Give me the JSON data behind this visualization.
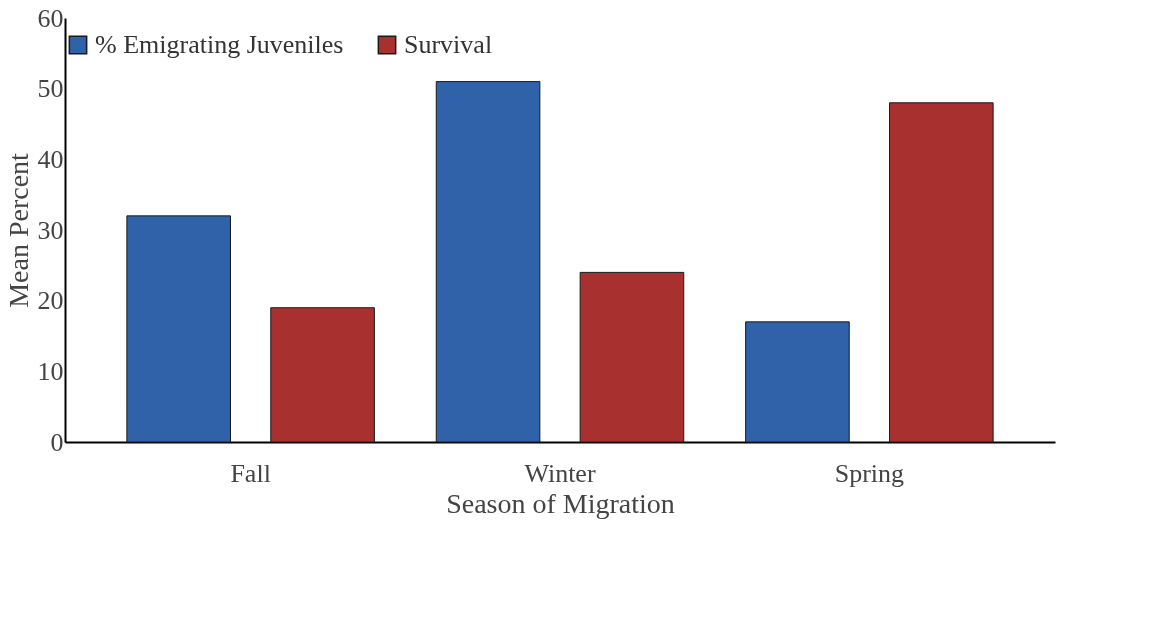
{
  "chart_data": {
    "type": "bar",
    "xlabel": "Season of Migration",
    "ylabel": "Mean Percent",
    "categories": [
      "Fall",
      "Winter",
      "Spring"
    ],
    "series": [
      {
        "name": "% Emigrating Juveniles",
        "color": "#2f62a8",
        "values": [
          32,
          51,
          17
        ]
      },
      {
        "name": "Survival",
        "color": "#a8302e",
        "values": [
          19,
          24,
          48
        ]
      }
    ],
    "ylim": [
      0,
      60
    ],
    "yticks": [
      0,
      10,
      20,
      30,
      40,
      50,
      60
    ],
    "grid": false,
    "legend": "top"
  }
}
